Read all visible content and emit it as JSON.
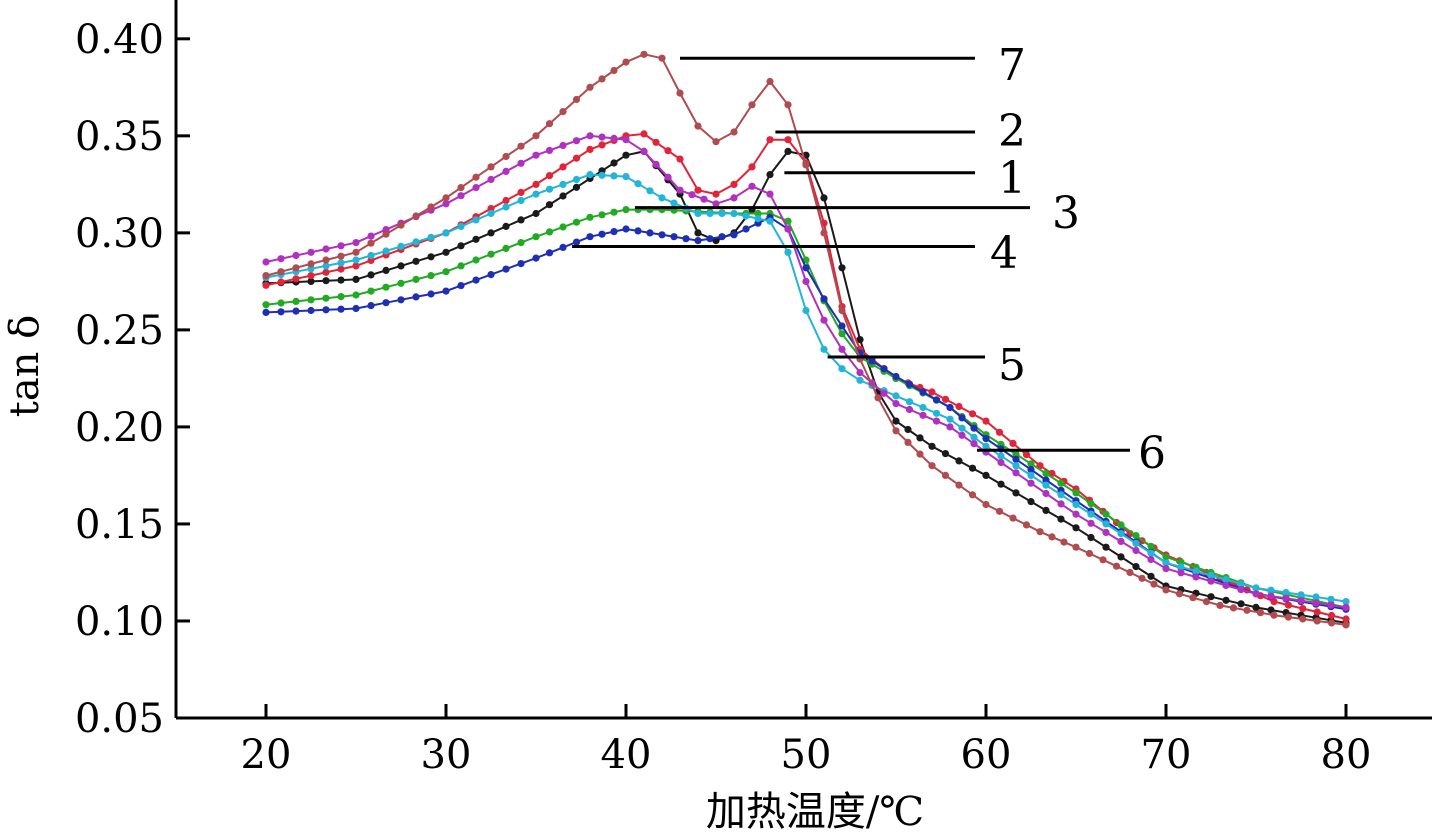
{
  "chart_data": {
    "type": "line",
    "xlabel": "加热温度/℃",
    "ylabel": "tan δ",
    "xlim": [
      15,
      85
    ],
    "ylim": [
      0.05,
      0.42
    ],
    "xticks": [
      20,
      30,
      40,
      50,
      60,
      70,
      80
    ],
    "yticks": [
      0.05,
      0.1,
      0.15,
      0.2,
      0.25,
      0.3,
      0.35,
      0.4
    ],
    "xtick_labels": [
      "20",
      "30",
      "40",
      "50",
      "60",
      "70",
      "80"
    ],
    "ytick_labels": [
      "0.05",
      "0.10",
      "0.15",
      "0.20",
      "0.25",
      "0.30",
      "0.35",
      "0.40"
    ],
    "grid": false,
    "series": [
      {
        "name": "1",
        "color": "#1a1a1a",
        "x": [
          20,
          25,
          30,
          35,
          38,
          40,
          41,
          43,
          44,
          45,
          46,
          47,
          48,
          49,
          50,
          51,
          52,
          53,
          54,
          55,
          57,
          60,
          65,
          70,
          75,
          80
        ],
        "y": [
          0.274,
          0.276,
          0.29,
          0.31,
          0.328,
          0.34,
          0.342,
          0.32,
          0.3,
          0.296,
          0.3,
          0.312,
          0.33,
          0.342,
          0.34,
          0.318,
          0.282,
          0.245,
          0.218,
          0.203,
          0.19,
          0.175,
          0.148,
          0.118,
          0.107,
          0.099
        ]
      },
      {
        "name": "2",
        "color": "#e0243a",
        "x": [
          20,
          25,
          30,
          35,
          38,
          40,
          41,
          43,
          44,
          45,
          46,
          47,
          48,
          49,
          50,
          51,
          52,
          53,
          55,
          57,
          60,
          63,
          65,
          68,
          70,
          73,
          76,
          80
        ],
        "y": [
          0.273,
          0.283,
          0.3,
          0.325,
          0.343,
          0.35,
          0.351,
          0.338,
          0.322,
          0.32,
          0.325,
          0.334,
          0.348,
          0.348,
          0.336,
          0.305,
          0.262,
          0.24,
          0.225,
          0.218,
          0.203,
          0.18,
          0.168,
          0.145,
          0.134,
          0.122,
          0.11,
          0.101
        ]
      },
      {
        "name": "3",
        "color": "#22aa22",
        "x": [
          20,
          25,
          30,
          35,
          38,
          40,
          42,
          44,
          46,
          48,
          49,
          50,
          51,
          52,
          53,
          55,
          58,
          60,
          65,
          70,
          75,
          80
        ],
        "y": [
          0.263,
          0.268,
          0.28,
          0.298,
          0.308,
          0.312,
          0.312,
          0.311,
          0.31,
          0.31,
          0.306,
          0.286,
          0.265,
          0.248,
          0.236,
          0.225,
          0.21,
          0.196,
          0.166,
          0.133,
          0.117,
          0.107
        ]
      },
      {
        "name": "4",
        "color": "#1f2fb3",
        "x": [
          20,
          25,
          30,
          35,
          38,
          40,
          42,
          44,
          46,
          48,
          49,
          50,
          51,
          52,
          53,
          55,
          58,
          60,
          65,
          70,
          75,
          80
        ],
        "y": [
          0.259,
          0.261,
          0.27,
          0.287,
          0.298,
          0.302,
          0.299,
          0.296,
          0.299,
          0.308,
          0.302,
          0.282,
          0.266,
          0.252,
          0.238,
          0.226,
          0.21,
          0.194,
          0.162,
          0.13,
          0.114,
          0.106
        ]
      },
      {
        "name": "5",
        "color": "#22b5d8",
        "x": [
          20,
          25,
          30,
          35,
          38,
          40,
          42,
          44,
          46,
          48,
          49,
          50,
          51,
          52,
          53,
          55,
          58,
          60,
          65,
          70,
          75,
          80
        ],
        "y": [
          0.277,
          0.286,
          0.3,
          0.32,
          0.33,
          0.329,
          0.318,
          0.31,
          0.31,
          0.306,
          0.29,
          0.26,
          0.24,
          0.23,
          0.224,
          0.216,
          0.204,
          0.19,
          0.16,
          0.13,
          0.117,
          0.11
        ]
      },
      {
        "name": "6",
        "color": "#b030c0",
        "x": [
          20,
          25,
          30,
          35,
          38,
          40,
          41,
          43,
          45,
          46,
          47,
          48,
          49,
          50,
          51,
          52,
          53,
          55,
          58,
          60,
          65,
          70,
          75,
          80
        ],
        "y": [
          0.285,
          0.295,
          0.315,
          0.34,
          0.35,
          0.348,
          0.342,
          0.322,
          0.315,
          0.318,
          0.324,
          0.32,
          0.302,
          0.275,
          0.255,
          0.24,
          0.228,
          0.212,
          0.2,
          0.187,
          0.155,
          0.127,
          0.114,
          0.107
        ]
      },
      {
        "name": "7",
        "color": "#b04b50",
        "x": [
          20,
          25,
          30,
          35,
          38,
          40,
          41,
          42,
          43,
          44,
          45,
          46,
          47,
          48,
          49,
          50,
          51,
          52,
          53,
          54,
          55,
          57,
          60,
          63,
          65,
          68,
          70,
          73,
          76,
          80
        ],
        "y": [
          0.278,
          0.29,
          0.318,
          0.35,
          0.375,
          0.388,
          0.392,
          0.39,
          0.372,
          0.355,
          0.347,
          0.352,
          0.366,
          0.378,
          0.366,
          0.335,
          0.3,
          0.26,
          0.235,
          0.215,
          0.198,
          0.18,
          0.16,
          0.146,
          0.138,
          0.125,
          0.116,
          0.108,
          0.103,
          0.098
        ]
      }
    ],
    "annotations": [
      {
        "series": "7",
        "text": "7",
        "x": 43.0,
        "y": 0.39
      },
      {
        "series": "2",
        "text": "2",
        "x": 48.3,
        "y": 0.352
      },
      {
        "series": "1",
        "text": "1",
        "x": 48.8,
        "y": 0.331
      },
      {
        "series": "3",
        "text": "3",
        "x": 40.5,
        "y": 0.313
      },
      {
        "series": "4",
        "text": "4",
        "x": 37.0,
        "y": 0.293
      },
      {
        "series": "5",
        "text": "5",
        "x": 51.2,
        "y": 0.236
      },
      {
        "series": "6",
        "text": "6",
        "x": 59.5,
        "y": 0.188
      }
    ]
  }
}
